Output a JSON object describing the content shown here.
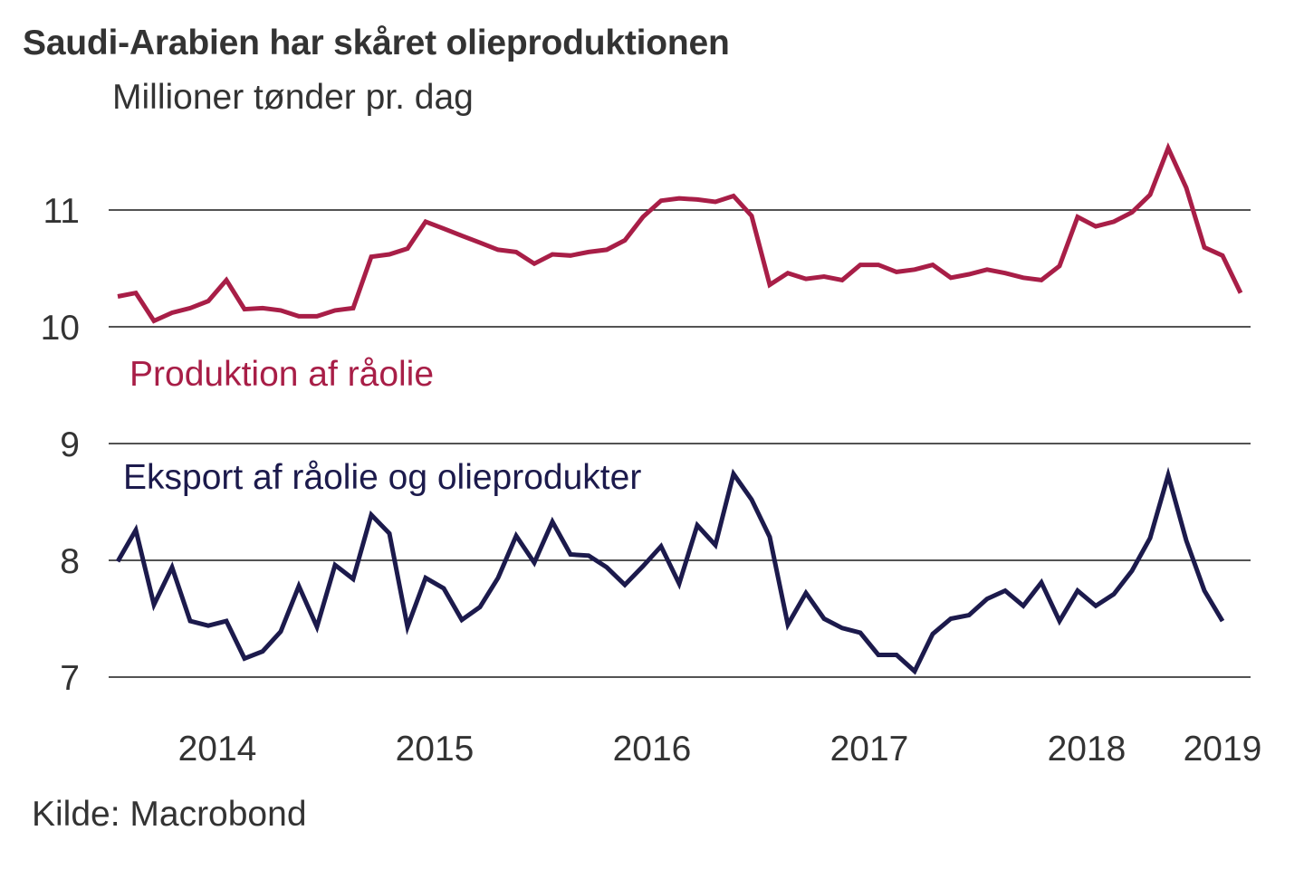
{
  "chart_data": {
    "type": "line",
    "title": "Saudi-Arabien har skåret olieproduktionen",
    "subtitle": "Millioner tønder pr. dag",
    "source": "Kilde: Macrobond",
    "xlabel": "",
    "ylabel": "Millioner tønder pr. dag",
    "ylim": [
      7,
      11.6
    ],
    "yticks": [
      7,
      8,
      9,
      10,
      11
    ],
    "grid": true,
    "x_start": "2014-01",
    "x_step": "month",
    "xtick_labels": [
      "2014",
      "2015",
      "2016",
      "2017",
      "2018",
      "2019"
    ],
    "xtick_months": [
      6,
      18,
      30,
      42,
      54,
      61.5
    ],
    "series": [
      {
        "name": "Produktion af råolie",
        "color": "#a81e47",
        "label_color": "#a81e47",
        "values": [
          10.26,
          10.29,
          10.05,
          10.12,
          10.16,
          10.22,
          10.4,
          10.15,
          10.16,
          10.14,
          10.09,
          10.09,
          10.14,
          10.16,
          10.6,
          10.62,
          10.67,
          10.9,
          10.84,
          10.78,
          10.72,
          10.66,
          10.64,
          10.54,
          10.62,
          10.61,
          10.64,
          10.66,
          10.74,
          10.94,
          11.08,
          11.1,
          11.09,
          11.07,
          11.12,
          10.95,
          10.36,
          10.46,
          10.41,
          10.43,
          10.4,
          10.53,
          10.53,
          10.47,
          10.49,
          10.53,
          10.42,
          10.45,
          10.49,
          10.46,
          10.42,
          10.4,
          10.52,
          10.94,
          10.86,
          10.9,
          10.98,
          11.13,
          11.53,
          11.19,
          10.68,
          10.61,
          10.29
        ]
      },
      {
        "name": "Eksport af råolie og olieprodukter",
        "color": "#1c1a4c",
        "label_color": "#1c1a4c",
        "values": [
          7.99,
          8.26,
          7.62,
          7.94,
          7.48,
          7.44,
          7.48,
          7.16,
          7.22,
          7.39,
          7.78,
          7.43,
          7.96,
          7.84,
          8.39,
          8.23,
          7.43,
          7.85,
          7.76,
          7.49,
          7.6,
          7.85,
          8.21,
          7.98,
          8.33,
          8.05,
          8.04,
          7.94,
          7.79,
          7.95,
          8.12,
          7.8,
          8.3,
          8.13,
          8.74,
          8.52,
          8.2,
          7.45,
          7.72,
          7.5,
          7.42,
          7.38,
          7.19,
          7.19,
          7.05,
          7.37,
          7.5,
          7.53,
          7.67,
          7.74,
          7.61,
          7.81,
          7.48,
          7.74,
          7.61,
          7.71,
          7.91,
          8.19,
          8.73,
          8.17,
          7.74,
          7.48
        ]
      }
    ],
    "annotations": [
      {
        "text": "Produktion af råolie",
        "series": 0,
        "near_month": 1,
        "near_value": 9.6
      },
      {
        "text": "Eksport af råolie og olieprodukter",
        "series": 1,
        "near_month": 0.3,
        "near_value": 8.73
      }
    ]
  }
}
